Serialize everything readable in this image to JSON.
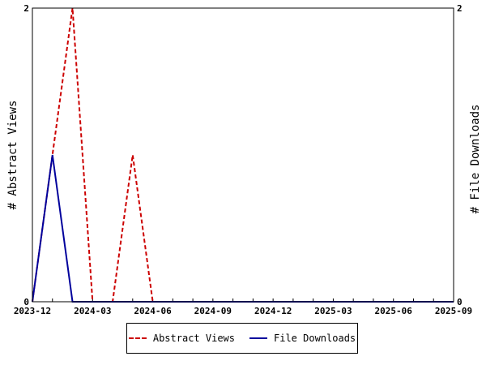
{
  "colors": {
    "abstract_views": "#cc0000",
    "file_downloads": "#00009c"
  },
  "chart_data": {
    "type": "line",
    "x": [
      "2023-12",
      "2024-01",
      "2024-02",
      "2024-03",
      "2024-04",
      "2024-05",
      "2024-06",
      "2024-07",
      "2024-08",
      "2024-09",
      "2024-10",
      "2024-11",
      "2024-12",
      "2025-01",
      "2025-02",
      "2025-03",
      "2025-04",
      "2025-05",
      "2025-06",
      "2025-07",
      "2025-08",
      "2025-09"
    ],
    "x_tick_labels": [
      "2023-12",
      "2024-03",
      "2024-06",
      "2024-09",
      "2024-12",
      "2025-03",
      "2025-06",
      "2025-09"
    ],
    "series": [
      {
        "name": "Abstract Views",
        "axis": "left",
        "style": "dashed",
        "values": [
          0,
          1,
          2,
          0,
          0,
          1,
          0,
          0,
          0,
          0,
          0,
          0,
          0,
          0,
          0,
          0,
          0,
          0,
          0,
          0,
          0,
          0
        ]
      },
      {
        "name": "File Downloads",
        "axis": "right",
        "style": "solid",
        "values": [
          0,
          1,
          0,
          0,
          0,
          0,
          0,
          0,
          0,
          0,
          0,
          0,
          0,
          0,
          0,
          0,
          0,
          0,
          0,
          0,
          0,
          0
        ]
      }
    ],
    "ylabel": "# Abstract Views",
    "y2label": "# File Downloads",
    "ylim": [
      0,
      2
    ],
    "y2lim": [
      0,
      2
    ],
    "y_tick_labels": [
      "0",
      "2"
    ],
    "y2_tick_labels": [
      "0",
      "2"
    ],
    "legend_position": "bottom",
    "grid": false
  }
}
